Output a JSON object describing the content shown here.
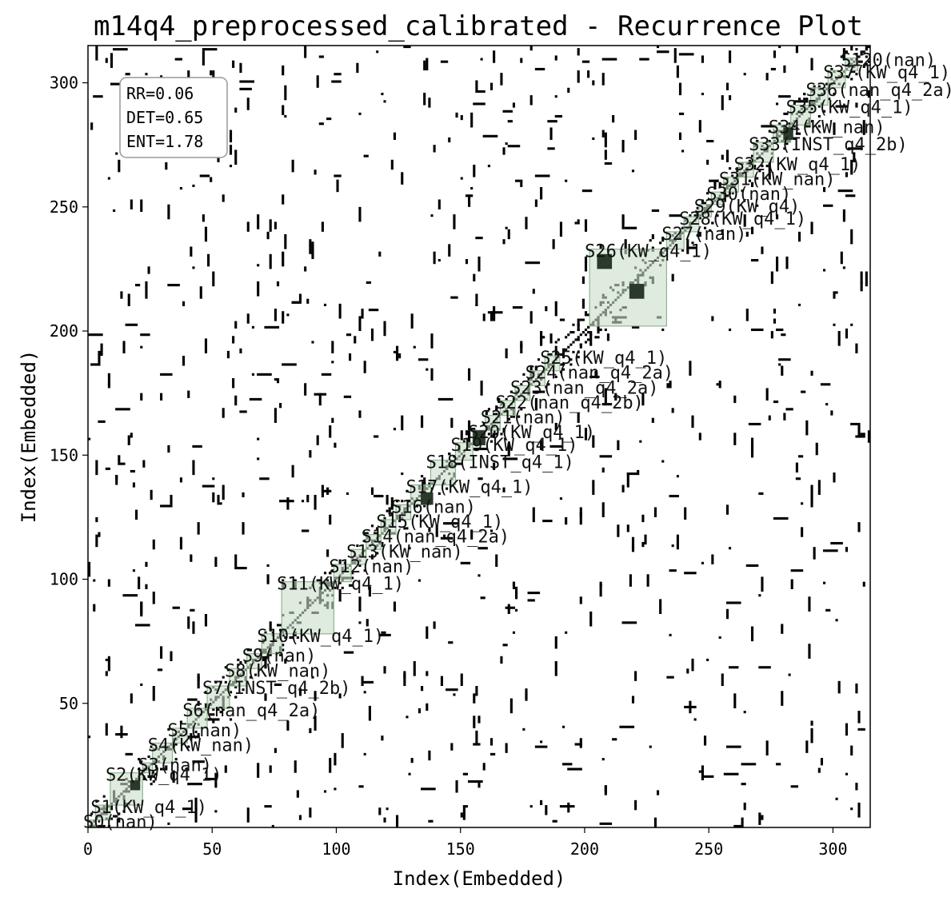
{
  "chart_data": {
    "type": "heatmap",
    "title": "m14q4_preprocessed_calibrated - Recurrence Plot",
    "xlabel": "Index(Embedded)",
    "ylabel": "Index(Embedded)",
    "xlim": [
      0,
      315
    ],
    "ylim": [
      0,
      315
    ],
    "xticks": [
      0,
      50,
      100,
      150,
      200,
      250,
      300
    ],
    "yticks": [
      50,
      100,
      150,
      200,
      250,
      300
    ],
    "grid": false,
    "metrics": [
      "RR=0.06",
      "DET=0.65",
      "ENT=1.78"
    ],
    "recurrence_color": "#000000",
    "segment_fill": "#c8dec8",
    "segment_stroke": "#8fb58f",
    "dense_block_color": "#2a3a2a",
    "dense_blocks": [
      {
        "x0": 17,
        "x1": 21,
        "y0": 15,
        "y1": 19
      },
      {
        "x0": 134,
        "x1": 139,
        "y0": 130,
        "y1": 135
      },
      {
        "x0": 155,
        "x1": 160,
        "y0": 154,
        "y1": 160
      },
      {
        "x0": 205,
        "x1": 211,
        "y0": 225,
        "y1": 231
      },
      {
        "x0": 218,
        "x1": 224,
        "y0": 213,
        "y1": 219
      },
      {
        "x0": 280,
        "x1": 284,
        "y0": 277,
        "y1": 282
      }
    ],
    "segments": [
      {
        "label": "S0(nan)",
        "start": 0,
        "end": 3
      },
      {
        "label": "S1(KW_q4_1)",
        "start": 3,
        "end": 9
      },
      {
        "label": "S2(KW_q4_1)",
        "start": 9,
        "end": 22
      },
      {
        "label": "S3(nan)",
        "start": 22,
        "end": 26
      },
      {
        "label": "S4(KW_nan)",
        "start": 26,
        "end": 34
      },
      {
        "label": "S5(nan)",
        "start": 34,
        "end": 40
      },
      {
        "label": "S6(nan_q4_2a)",
        "start": 40,
        "end": 48
      },
      {
        "label": "S7(INST_q4_2b)",
        "start": 48,
        "end": 57
      },
      {
        "label": "S8(KW_nan)",
        "start": 57,
        "end": 64
      },
      {
        "label": "S9(nan)",
        "start": 64,
        "end": 70
      },
      {
        "label": "S10(KW_q4_1)",
        "start": 70,
        "end": 78
      },
      {
        "label": "S11(KW_q4_1)",
        "start": 78,
        "end": 99
      },
      {
        "label": "S12(nan)",
        "start": 99,
        "end": 106
      },
      {
        "label": "S13(KW_nan)",
        "start": 106,
        "end": 112
      },
      {
        "label": "S14(nan_q4_2a)",
        "start": 112,
        "end": 118
      },
      {
        "label": "S15(KW_q4_1)",
        "start": 118,
        "end": 124
      },
      {
        "label": "S16(nan)",
        "start": 124,
        "end": 130
      },
      {
        "label": "S17(KW_q4_1)",
        "start": 130,
        "end": 138
      },
      {
        "label": "S18(INST_q4_1)",
        "start": 138,
        "end": 148
      },
      {
        "label": "S19(KW_q4_1)",
        "start": 148,
        "end": 155
      },
      {
        "label": "S20(KW_q4_1)",
        "start": 155,
        "end": 160
      },
      {
        "label": "S21(nan)",
        "start": 160,
        "end": 166
      },
      {
        "label": "S22(nan_q4_2b)",
        "start": 166,
        "end": 172
      },
      {
        "label": "S23(nan_q4_2a)",
        "start": 172,
        "end": 178
      },
      {
        "label": "S24(nan_q4_2a)",
        "start": 178,
        "end": 184
      },
      {
        "label": "S25(KW_q4_1)",
        "start": 184,
        "end": 190
      },
      {
        "label": "S26(KW_q4_1)",
        "start": 202,
        "end": 233
      },
      {
        "label": "S27(nan)",
        "start": 233,
        "end": 240
      },
      {
        "label": "S28(KW_q4_1)",
        "start": 240,
        "end": 246
      },
      {
        "label": "S29(KW_q4)",
        "start": 246,
        "end": 251
      },
      {
        "label": "S30(nan)",
        "start": 251,
        "end": 256
      },
      {
        "label": "S31(KW_nan)",
        "start": 256,
        "end": 262
      },
      {
        "label": "S32(KW_q4_1)",
        "start": 262,
        "end": 268
      },
      {
        "label": "S33(INST_q4_2b)",
        "start": 268,
        "end": 276
      },
      {
        "label": "S34(KW_nan)",
        "start": 276,
        "end": 283
      },
      {
        "label": "S35(KW_q4_1)",
        "start": 283,
        "end": 291
      },
      {
        "label": "S36(nan_q4_2a)",
        "start": 291,
        "end": 298
      },
      {
        "label": "S37(KW_q4_1)",
        "start": 298,
        "end": 305
      },
      {
        "label": "S120(nan)",
        "start": 305,
        "end": 310
      }
    ]
  }
}
